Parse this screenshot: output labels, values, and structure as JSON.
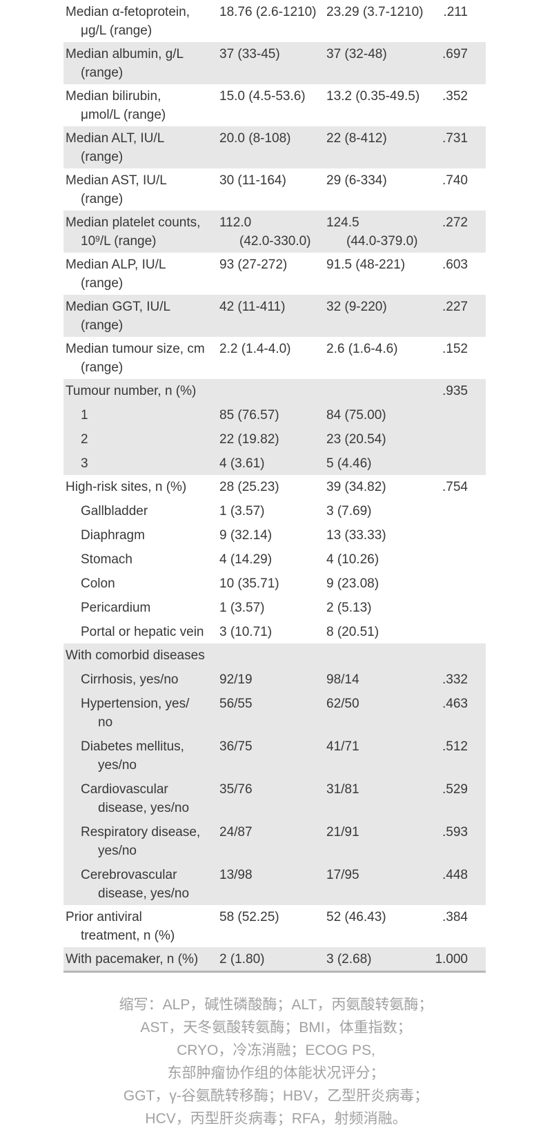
{
  "table": {
    "rows": [
      {
        "label1": "Median α-fetoprotein,",
        "label2": "μg/L (range)",
        "v1": "18.76 (2.6-1210)",
        "v2": "23.29 (3.7-1210)",
        "p": ".211"
      },
      {
        "label1": "Median albumin, g/L",
        "label2": "(range)",
        "v1": "37 (33-45)",
        "v2": "37 (32-48)",
        "p": ".697"
      },
      {
        "label1": "Median bilirubin,",
        "label2": "μmol/L (range)",
        "v1": "15.0 (4.5-53.6)",
        "v2": "13.2 (0.35-49.5)",
        "p": ".352"
      },
      {
        "label1": "Median ALT, IU/L",
        "label2": "(range)",
        "v1": "20.0 (8-108)",
        "v2": "22 (8-412)",
        "p": ".731"
      },
      {
        "label1": "Median AST, IU/L",
        "label2": "(range)",
        "v1": "30 (11-164)",
        "v2": "29 (6-334)",
        "p": ".740"
      },
      {
        "label1": "Median platelet counts,",
        "label2_pre": "10",
        "label2_sup": "9",
        "label2_post": "/L (range)",
        "v1_line1": "112.0",
        "v1_line2": "(42.0-330.0)",
        "v2_line1": "124.5",
        "v2_line2": "(44.0-379.0)",
        "p": ".272"
      },
      {
        "label1": "Median ALP, IU/L",
        "label2": "(range)",
        "v1": "93 (27-272)",
        "v2": "91.5 (48-221)",
        "p": ".603"
      },
      {
        "label1": "Median GGT, IU/L",
        "label2": "(range)",
        "v1": "42 (11-411)",
        "v2": "32 (9-220)",
        "p": ".227"
      },
      {
        "label1": "Median tumour size, cm",
        "label2": "(range)",
        "v1": "2.2 (1.4-4.0)",
        "v2": "2.6 (1.6-4.6)",
        "p": ".152"
      }
    ],
    "tumour_number": {
      "header": "Tumour number, n (%)",
      "p": ".935",
      "subs": [
        {
          "label": "1",
          "v1": "85 (76.57)",
          "v2": "84 (75.00)"
        },
        {
          "label": "2",
          "v1": "22 (19.82)",
          "v2": "23 (20.54)"
        },
        {
          "label": "3",
          "v1": "4 (3.61)",
          "v2": "5 (4.46)"
        }
      ]
    },
    "high_risk": {
      "header": "High-risk sites, n (%)",
      "v1": "28 (25.23)",
      "v2": "39 (34.82)",
      "p": ".754",
      "subs": [
        {
          "label": "Gallbladder",
          "v1": "1 (3.57)",
          "v2": "3 (7.69)"
        },
        {
          "label": "Diaphragm",
          "v1": "9 (32.14)",
          "v2": "13 (33.33)"
        },
        {
          "label": "Stomach",
          "v1": "4 (14.29)",
          "v2": "4 (10.26)"
        },
        {
          "label": "Colon",
          "v1": "10 (35.71)",
          "v2": "9 (23.08)"
        },
        {
          "label": "Pericardium",
          "v1": "1 (3.57)",
          "v2": "2 (5.13)"
        },
        {
          "label": "Portal or hepatic vein",
          "v1": "3 (10.71)",
          "v2": "8 (20.51)"
        }
      ]
    },
    "comorbid": {
      "header": "With comorbid diseases",
      "subs": [
        {
          "label1": "Cirrhosis, yes/no",
          "label2": "",
          "v1": "92/19",
          "v2": "98/14",
          "p": ".332"
        },
        {
          "label1": "Hypertension, yes/",
          "label2": "no",
          "v1": "56/55",
          "v2": "62/50",
          "p": ".463"
        },
        {
          "label1": "Diabetes mellitus,",
          "label2": "yes/no",
          "v1": "36/75",
          "v2": "41/71",
          "p": ".512"
        },
        {
          "label1": "Cardiovascular",
          "label2": "disease, yes/no",
          "v1": "35/76",
          "v2": "31/81",
          "p": ".529"
        },
        {
          "label1": "Respiratory disease,",
          "label2": "yes/no",
          "v1": "24/87",
          "v2": "21/91",
          "p": ".593"
        },
        {
          "label1": "Cerebrovascular",
          "label2": "disease, yes/no",
          "v1": "13/98",
          "v2": "17/95",
          "p": ".448"
        }
      ]
    },
    "prior_antiviral": {
      "label1": "Prior antiviral",
      "label2": "treatment, n (%)",
      "v1": "58 (52.25)",
      "v2": "52 (46.43)",
      "p": ".384"
    },
    "pacemaker": {
      "label": "With pacemaker, n (%)",
      "v1": "2 (1.80)",
      "v2": "3 (2.68)",
      "p": "1.000"
    }
  },
  "footnote": {
    "lines": [
      "缩写：ALP，碱性磷酸酶；ALT，丙氨酸转氨酶；",
      "AST，天冬氨酸转氨酶；BMI，体重指数；",
      "CRYO，冷冻消融；ECOG PS,",
      "东部肿瘤协作组的体能状况评分；",
      "GGT，γ-谷氨酰转移酶；HBV，乙型肝炎病毒；",
      "HCV，丙型肝炎病毒；RFA，射频消融。"
    ]
  },
  "colors": {
    "row_stripe": "#e8e7e7",
    "table_text": "#383838",
    "footnote_text": "#a1a1a1",
    "bottom_border": "#b8b6b6"
  }
}
